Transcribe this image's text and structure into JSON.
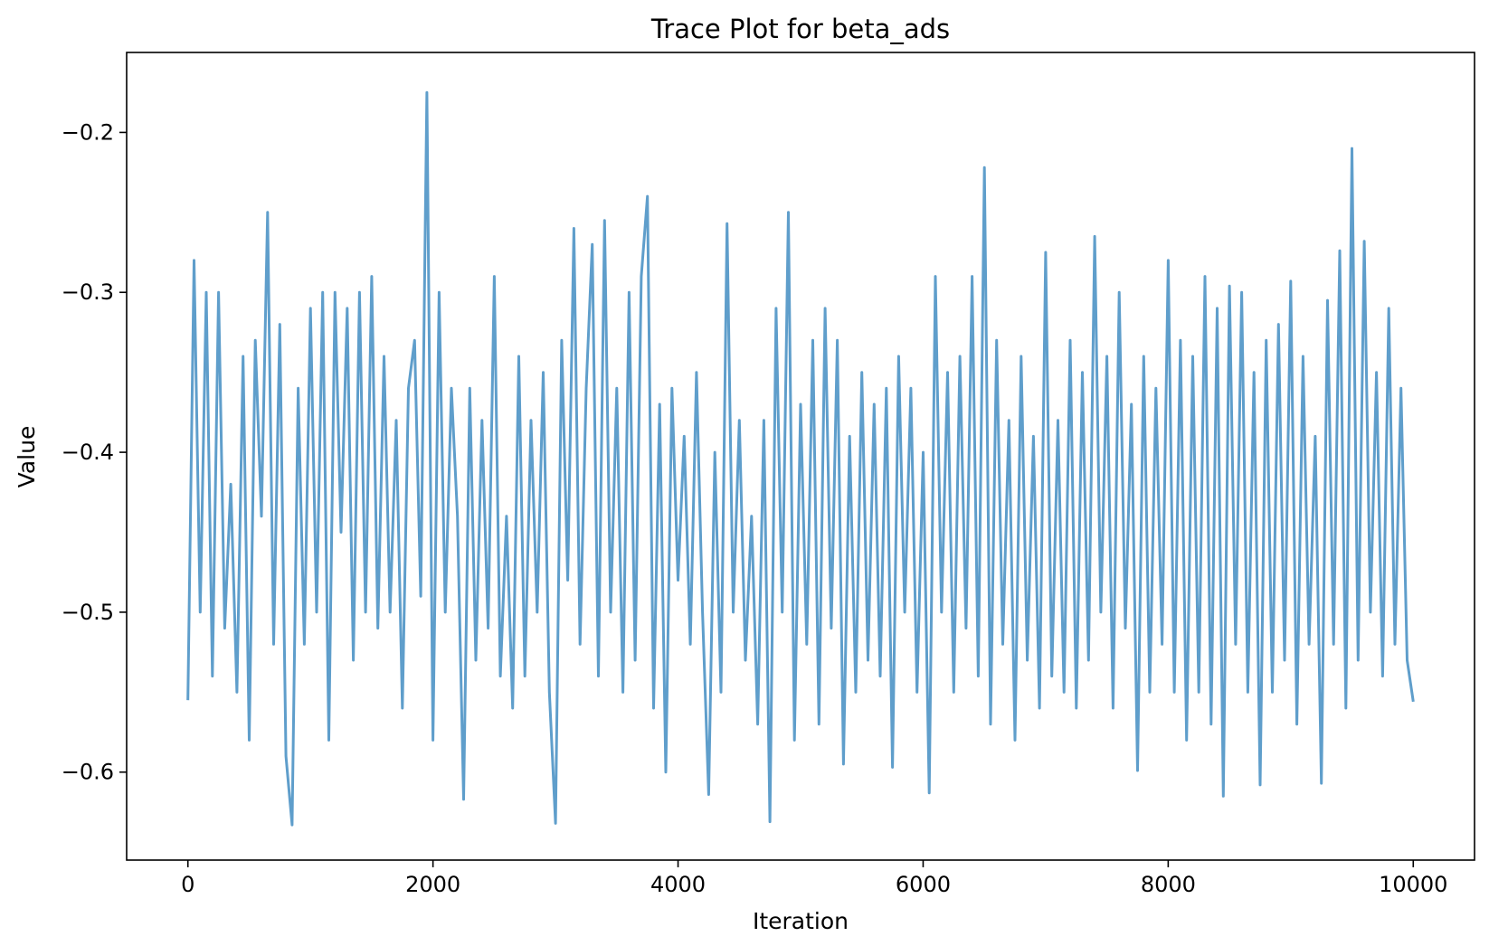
{
  "chart_data": {
    "type": "line",
    "title": "Trace Plot for beta_ads",
    "xlabel": "Iteration",
    "ylabel": "Value",
    "xlim": [
      -500,
      10500
    ],
    "ylim": [
      -0.655,
      -0.15
    ],
    "x_ticks": [
      0,
      2000,
      4000,
      6000,
      8000,
      10000
    ],
    "x_tick_labels": [
      "0",
      "2000",
      "4000",
      "6000",
      "8000",
      "10000"
    ],
    "y_ticks": [
      -0.6,
      -0.5,
      -0.4,
      -0.3,
      -0.2
    ],
    "y_tick_labels": [
      "−0.6",
      "−0.5",
      "−0.4",
      "−0.3",
      "−0.2"
    ],
    "grid": false,
    "legend": "none",
    "line_color": "#5f9ecb",
    "series": [
      {
        "x": [
          0,
          50,
          100,
          150,
          200,
          250,
          300,
          350,
          400,
          450,
          500,
          550,
          600,
          650,
          700,
          750,
          800,
          850,
          900,
          950,
          1000,
          1050,
          1100,
          1150,
          1200,
          1250,
          1300,
          1350,
          1400,
          1450,
          1500,
          1550,
          1600,
          1650,
          1700,
          1750,
          1800,
          1850,
          1900,
          1950,
          2000,
          2050,
          2100,
          2150,
          2200,
          2250,
          2300,
          2350,
          2400,
          2450,
          2500,
          2550,
          2600,
          2650,
          2700,
          2750,
          2800,
          2850,
          2900,
          2950,
          3000,
          3050,
          3100,
          3150,
          3200,
          3250,
          3300,
          3350,
          3400,
          3450,
          3500,
          3550,
          3600,
          3650,
          3700,
          3750,
          3800,
          3850,
          3900,
          3950,
          4000,
          4050,
          4100,
          4150,
          4200,
          4250,
          4300,
          4350,
          4400,
          4450,
          4500,
          4550,
          4600,
          4650,
          4700,
          4750,
          4800,
          4850,
          4900,
          4950,
          5000,
          5050,
          5100,
          5150,
          5200,
          5250,
          5300,
          5350,
          5400,
          5450,
          5500,
          5550,
          5600,
          5650,
          5700,
          5750,
          5800,
          5850,
          5900,
          5950,
          6000,
          6050,
          6100,
          6150,
          6200,
          6250,
          6300,
          6350,
          6400,
          6450,
          6500,
          6550,
          6600,
          6650,
          6700,
          6750,
          6800,
          6850,
          6900,
          6950,
          7000,
          7050,
          7100,
          7150,
          7200,
          7250,
          7300,
          7350,
          7400,
          7450,
          7500,
          7550,
          7600,
          7650,
          7700,
          7750,
          7800,
          7850,
          7900,
          7950,
          8000,
          8050,
          8100,
          8150,
          8200,
          8250,
          8300,
          8350,
          8400,
          8450,
          8500,
          8550,
          8600,
          8650,
          8700,
          8750,
          8800,
          8850,
          8900,
          8950,
          9000,
          9050,
          9100,
          9150,
          9200,
          9250,
          9300,
          9350,
          9400,
          9450,
          9500,
          9550,
          9600,
          9650,
          9700,
          9750,
          9800,
          9850,
          9900,
          9950,
          10000
        ],
        "values": [
          -0.555,
          -0.28,
          -0.5,
          -0.3,
          -0.54,
          -0.3,
          -0.51,
          -0.42,
          -0.55,
          -0.34,
          -0.58,
          -0.33,
          -0.44,
          -0.25,
          -0.52,
          -0.32,
          -0.59,
          -0.633,
          -0.36,
          -0.52,
          -0.31,
          -0.5,
          -0.3,
          -0.58,
          -0.3,
          -0.45,
          -0.31,
          -0.53,
          -0.3,
          -0.5,
          -0.29,
          -0.51,
          -0.34,
          -0.5,
          -0.38,
          -0.56,
          -0.36,
          -0.33,
          -0.49,
          -0.175,
          -0.58,
          -0.3,
          -0.5,
          -0.36,
          -0.44,
          -0.617,
          -0.36,
          -0.53,
          -0.38,
          -0.51,
          -0.29,
          -0.54,
          -0.44,
          -0.56,
          -0.34,
          -0.54,
          -0.38,
          -0.5,
          -0.35,
          -0.55,
          -0.632,
          -0.33,
          -0.48,
          -0.26,
          -0.52,
          -0.36,
          -0.27,
          -0.54,
          -0.255,
          -0.5,
          -0.36,
          -0.55,
          -0.3,
          -0.53,
          -0.29,
          -0.24,
          -0.56,
          -0.37,
          -0.6,
          -0.36,
          -0.48,
          -0.39,
          -0.52,
          -0.35,
          -0.5,
          -0.614,
          -0.4,
          -0.55,
          -0.257,
          -0.5,
          -0.38,
          -0.53,
          -0.44,
          -0.57,
          -0.38,
          -0.631,
          -0.31,
          -0.5,
          -0.25,
          -0.58,
          -0.37,
          -0.52,
          -0.33,
          -0.57,
          -0.31,
          -0.51,
          -0.33,
          -0.595,
          -0.39,
          -0.55,
          -0.35,
          -0.53,
          -0.37,
          -0.54,
          -0.36,
          -0.597,
          -0.34,
          -0.5,
          -0.36,
          -0.55,
          -0.4,
          -0.613,
          -0.29,
          -0.5,
          -0.35,
          -0.55,
          -0.34,
          -0.51,
          -0.29,
          -0.54,
          -0.222,
          -0.57,
          -0.33,
          -0.52,
          -0.38,
          -0.58,
          -0.34,
          -0.53,
          -0.39,
          -0.56,
          -0.275,
          -0.54,
          -0.38,
          -0.55,
          -0.33,
          -0.56,
          -0.35,
          -0.53,
          -0.265,
          -0.5,
          -0.34,
          -0.56,
          -0.3,
          -0.51,
          -0.37,
          -0.599,
          -0.34,
          -0.55,
          -0.36,
          -0.52,
          -0.28,
          -0.55,
          -0.33,
          -0.58,
          -0.34,
          -0.55,
          -0.29,
          -0.57,
          -0.31,
          -0.615,
          -0.296,
          -0.52,
          -0.3,
          -0.55,
          -0.35,
          -0.608,
          -0.33,
          -0.55,
          -0.32,
          -0.53,
          -0.293,
          -0.57,
          -0.34,
          -0.52,
          -0.39,
          -0.607,
          -0.305,
          -0.52,
          -0.274,
          -0.56,
          -0.21,
          -0.53,
          -0.268,
          -0.5,
          -0.35,
          -0.54,
          -0.31,
          -0.52,
          -0.36,
          -0.53,
          -0.556
        ]
      }
    ]
  }
}
